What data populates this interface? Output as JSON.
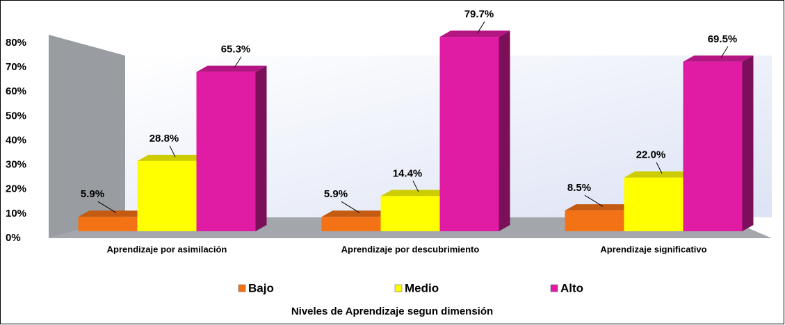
{
  "chart_data": {
    "type": "bar3d",
    "categories": [
      "Aprendizaje por asimilación",
      "Aprendizaje por descubrimiento",
      "Aprendizaje significativo"
    ],
    "series": [
      {
        "name": "Bajo",
        "color": "#f47216",
        "values": [
          5.9,
          5.9,
          8.5
        ],
        "value_labels": [
          "5.9%",
          "5.9%",
          "8.5%"
        ]
      },
      {
        "name": "Medio",
        "color": "#ffff00",
        "values": [
          28.8,
          14.4,
          22.0
        ],
        "value_labels": [
          "28.8%",
          "14.4%",
          "22.0%"
        ]
      },
      {
        "name": "Alto",
        "color": "#e01ba4",
        "values": [
          65.3,
          79.7,
          69.5
        ],
        "value_labels": [
          "65.3%",
          "79.7%",
          "69.5%"
        ]
      }
    ],
    "ylim": [
      0,
      80
    ],
    "yticks": [
      {
        "value": 0,
        "label": "0%"
      },
      {
        "value": 10,
        "label": "10%"
      },
      {
        "value": 20,
        "label": "20%"
      },
      {
        "value": 30,
        "label": "30%"
      },
      {
        "value": 40,
        "label": "40%"
      },
      {
        "value": 50,
        "label": "50%"
      },
      {
        "value": 60,
        "label": "60%"
      },
      {
        "value": 70,
        "label": "70%"
      },
      {
        "value": 80,
        "label": "80%"
      }
    ],
    "legend": "bottom",
    "x_label": "Niveles de Aprendizaje segun dimensión"
  }
}
